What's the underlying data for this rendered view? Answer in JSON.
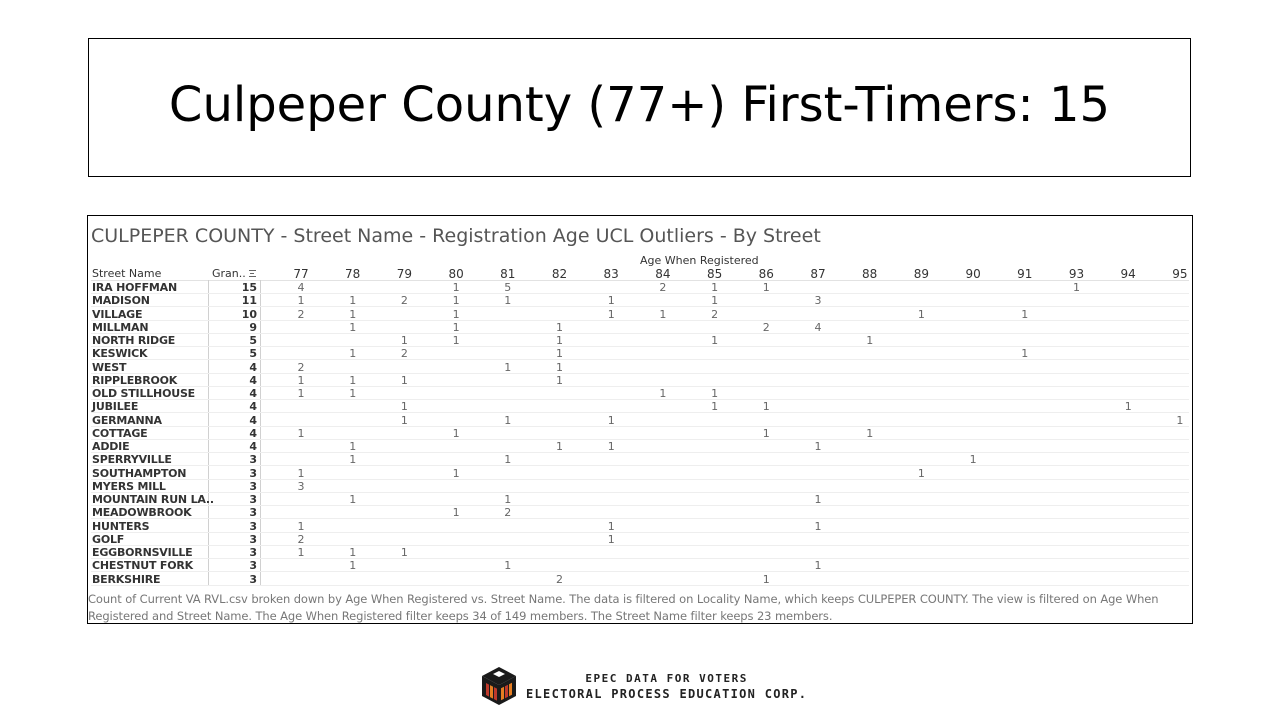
{
  "slide": {
    "title": "Culpeper County (77+) First-Timers: 15"
  },
  "viz": {
    "title": "CULPEPER COUNTY  - Street Name -  Registration Age UCL Outliers - By Street",
    "column_axis_title": "Age When Registered",
    "row_header": "Street Name",
    "grand_header": "Gran..",
    "columns": [
      "77",
      "78",
      "79",
      "80",
      "81",
      "82",
      "83",
      "84",
      "85",
      "86",
      "87",
      "88",
      "89",
      "90",
      "91",
      "93",
      "94",
      "95"
    ],
    "rows": [
      {
        "street": "IRA HOFFMAN",
        "grand": "15",
        "cells": {
          "77": "4",
          "80": "1",
          "81": "5",
          "84": "2",
          "85": "1",
          "86": "1",
          "93": "1"
        }
      },
      {
        "street": "MADISON",
        "grand": "11",
        "cells": {
          "77": "1",
          "78": "1",
          "79": "2",
          "80": "1",
          "81": "1",
          "83": "1",
          "85": "1",
          "87": "3"
        }
      },
      {
        "street": "VILLAGE",
        "grand": "10",
        "cells": {
          "77": "2",
          "78": "1",
          "80": "1",
          "83": "1",
          "84": "1",
          "85": "2",
          "89": "1",
          "91": "1"
        }
      },
      {
        "street": "MILLMAN",
        "grand": "9",
        "cells": {
          "78": "1",
          "80": "1",
          "82": "1",
          "86": "2",
          "87": "4"
        }
      },
      {
        "street": "NORTH RIDGE",
        "grand": "5",
        "cells": {
          "79": "1",
          "80": "1",
          "82": "1",
          "85": "1",
          "88": "1"
        }
      },
      {
        "street": "KESWICK",
        "grand": "5",
        "cells": {
          "78": "1",
          "79": "2",
          "82": "1",
          "91": "1"
        }
      },
      {
        "street": "WEST",
        "grand": "4",
        "cells": {
          "77": "2",
          "81": "1",
          "82": "1"
        }
      },
      {
        "street": "RIPPLEBROOK",
        "grand": "4",
        "cells": {
          "77": "1",
          "78": "1",
          "79": "1",
          "82": "1"
        }
      },
      {
        "street": "OLD STILLHOUSE",
        "grand": "4",
        "cells": {
          "77": "1",
          "78": "1",
          "84": "1",
          "85": "1"
        }
      },
      {
        "street": "JUBILEE",
        "grand": "4",
        "cells": {
          "79": "1",
          "85": "1",
          "86": "1",
          "94": "1"
        }
      },
      {
        "street": "GERMANNA",
        "grand": "4",
        "cells": {
          "79": "1",
          "81": "1",
          "83": "1",
          "95": "1"
        }
      },
      {
        "street": "COTTAGE",
        "grand": "4",
        "cells": {
          "77": "1",
          "80": "1",
          "86": "1",
          "88": "1"
        }
      },
      {
        "street": "ADDIE",
        "grand": "4",
        "cells": {
          "78": "1",
          "82": "1",
          "83": "1",
          "87": "1"
        }
      },
      {
        "street": "SPERRYVILLE",
        "grand": "3",
        "cells": {
          "78": "1",
          "81": "1",
          "90": "1"
        }
      },
      {
        "street": "SOUTHAMPTON",
        "grand": "3",
        "cells": {
          "77": "1",
          "80": "1",
          "89": "1"
        }
      },
      {
        "street": "MYERS MILL",
        "grand": "3",
        "cells": {
          "77": "3"
        }
      },
      {
        "street": "MOUNTAIN RUN LA..",
        "grand": "3",
        "cells": {
          "78": "1",
          "81": "1",
          "87": "1"
        }
      },
      {
        "street": "MEADOWBROOK",
        "grand": "3",
        "cells": {
          "80": "1",
          "81": "2"
        }
      },
      {
        "street": "HUNTERS",
        "grand": "3",
        "cells": {
          "77": "1",
          "83": "1",
          "87": "1"
        }
      },
      {
        "street": "GOLF",
        "grand": "3",
        "cells": {
          "77": "2",
          "83": "1"
        }
      },
      {
        "street": "EGGBORNSVILLE",
        "grand": "3",
        "cells": {
          "77": "1",
          "78": "1",
          "79": "1"
        }
      },
      {
        "street": "CHESTNUT FORK",
        "grand": "3",
        "cells": {
          "78": "1",
          "81": "1",
          "87": "1"
        }
      },
      {
        "street": "BERKSHIRE",
        "grand": "3",
        "cells": {
          "82": "2",
          "86": "1"
        }
      }
    ],
    "caption": "Count of Current VA RVL.csv broken down by Age When Registered vs. Street Name.  The data is filtered on Locality Name, which keeps CULPEPER COUNTY. The view is filtered on Age When Registered and Street Name. The Age When Registered filter keeps 34 of 149 members. The Street Name filter keeps 23 members."
  },
  "footer": {
    "logo_line1": "EPEC DATA FOR VOTERS",
    "logo_line2": "ELECTORAL PROCESS EDUCATION CORP.",
    "logo_icon": "ballot-box-cube-icon",
    "colors": {
      "red": "#c0392b",
      "orange": "#e67e22",
      "dark": "#1a1a1a"
    }
  }
}
